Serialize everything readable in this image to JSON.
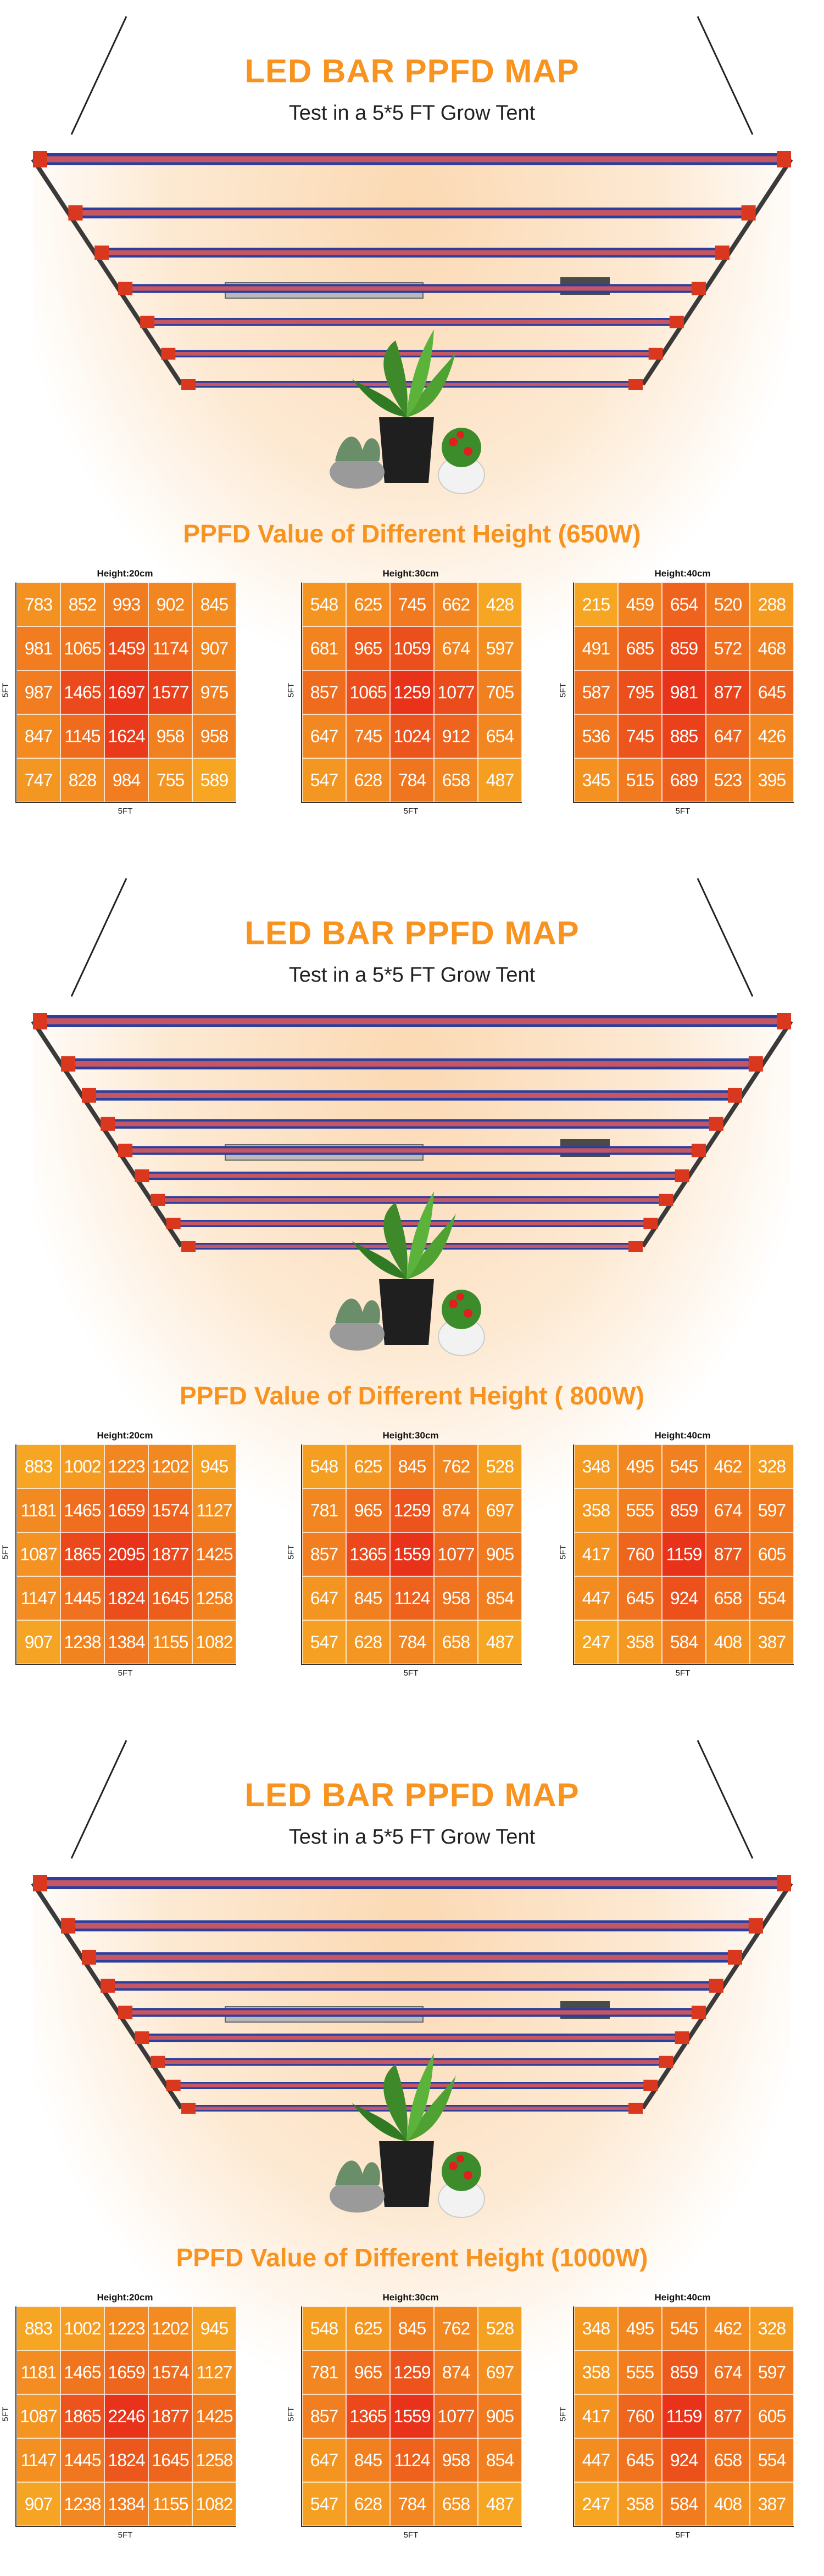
{
  "panels": [
    {
      "title": "LED BAR PPFD MAP",
      "subtitle": "Test in a 5*5 FT Grow Tent",
      "heading": "PPFD Value of Different Height (650W)",
      "maps": [
        {
          "height_label": "Height:20cm",
          "x_label": "5FT",
          "y_label": "5FT",
          "values": [
            [
              783,
              852,
              993,
              902,
              845
            ],
            [
              981,
              1065,
              1459,
              1174,
              907
            ],
            [
              987,
              1465,
              1697,
              1577,
              975
            ],
            [
              847,
              1145,
              1624,
              958,
              958
            ],
            [
              747,
              828,
              984,
              755,
              589
            ]
          ]
        },
        {
          "height_label": "Height:30cm",
          "x_label": "5FT",
          "y_label": "5FT",
          "values": [
            [
              548,
              625,
              745,
              662,
              428
            ],
            [
              681,
              965,
              1059,
              674,
              597
            ],
            [
              857,
              1065,
              1259,
              1077,
              705
            ],
            [
              647,
              745,
              1024,
              912,
              654
            ],
            [
              547,
              628,
              784,
              658,
              487
            ]
          ]
        },
        {
          "height_label": "Height:40cm",
          "x_label": "5FT",
          "y_label": "5FT",
          "values": [
            [
              215,
              459,
              654,
              520,
              288
            ],
            [
              491,
              685,
              859,
              572,
              468
            ],
            [
              587,
              795,
              981,
              877,
              645
            ],
            [
              536,
              745,
              885,
              647,
              426
            ],
            [
              345,
              515,
              689,
              523,
              395
            ]
          ]
        }
      ]
    },
    {
      "title": "LED BAR PPFD MAP",
      "subtitle": "Test in a 5*5 FT Grow Tent",
      "heading": "PPFD Value of Different Height ( 800W)",
      "maps": [
        {
          "height_label": "Height:20cm",
          "x_label": "5FT",
          "y_label": "5FT",
          "values": [
            [
              883,
              1002,
              1223,
              1202,
              945
            ],
            [
              1181,
              1465,
              1659,
              1574,
              1127
            ],
            [
              1087,
              1865,
              2095,
              1877,
              1425
            ],
            [
              1147,
              1445,
              1824,
              1645,
              1258
            ],
            [
              907,
              1238,
              1384,
              1155,
              1082
            ]
          ]
        },
        {
          "height_label": "Height:30cm",
          "x_label": "5FT",
          "y_label": "5FT",
          "values": [
            [
              548,
              625,
              845,
              762,
              528
            ],
            [
              781,
              965,
              1259,
              874,
              697
            ],
            [
              857,
              1365,
              1559,
              1077,
              905
            ],
            [
              647,
              845,
              1124,
              958,
              854
            ],
            [
              547,
              628,
              784,
              658,
              487
            ]
          ]
        },
        {
          "height_label": "Height:40cm",
          "x_label": "5FT",
          "y_label": "5FT",
          "values": [
            [
              348,
              495,
              545,
              462,
              328
            ],
            [
              358,
              555,
              859,
              674,
              597
            ],
            [
              417,
              760,
              1159,
              877,
              605
            ],
            [
              447,
              645,
              924,
              658,
              554
            ],
            [
              247,
              358,
              584,
              408,
              387
            ]
          ]
        }
      ]
    },
    {
      "title": "LED BAR PPFD MAP",
      "subtitle": "Test in a 5*5 FT Grow Tent",
      "heading": "PPFD Value of Different Height (1000W)",
      "maps": [
        {
          "height_label": "Height:20cm",
          "x_label": "5FT",
          "y_label": "5FT",
          "values": [
            [
              883,
              1002,
              1223,
              1202,
              945
            ],
            [
              1181,
              1465,
              1659,
              1574,
              1127
            ],
            [
              1087,
              1865,
              2246,
              1877,
              1425
            ],
            [
              1147,
              1445,
              1824,
              1645,
              1258
            ],
            [
              907,
              1238,
              1384,
              1155,
              1082
            ]
          ]
        },
        {
          "height_label": "Height:30cm",
          "x_label": "5FT",
          "y_label": "5FT",
          "values": [
            [
              548,
              625,
              845,
              762,
              528
            ],
            [
              781,
              965,
              1259,
              874,
              697
            ],
            [
              857,
              1365,
              1559,
              1077,
              905
            ],
            [
              647,
              845,
              1124,
              958,
              854
            ],
            [
              547,
              628,
              784,
              658,
              487
            ]
          ]
        },
        {
          "height_label": "Height:40cm",
          "x_label": "5FT",
          "y_label": "5FT",
          "values": [
            [
              348,
              495,
              545,
              462,
              328
            ],
            [
              358,
              555,
              859,
              674,
              597
            ],
            [
              417,
              760,
              1159,
              877,
              605
            ],
            [
              447,
              645,
              924,
              658,
              554
            ],
            [
              247,
              358,
              584,
              408,
              387
            ]
          ]
        }
      ]
    }
  ],
  "colors": {
    "accent": "#f7931e",
    "bar_blue": "#2b3f9e",
    "bar_red": "#d9381e",
    "cell_high": "#e8331a",
    "cell_low": "#f6a623"
  },
  "icons": [
    "led-grow-light-rig",
    "potted-plant-icon"
  ]
}
